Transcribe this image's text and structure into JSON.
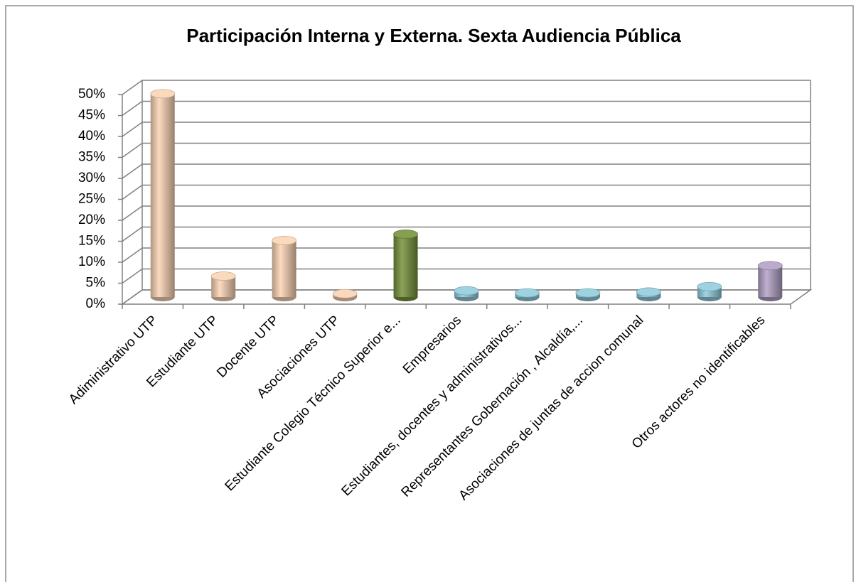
{
  "chart_data": {
    "type": "bar",
    "title": "Participación Interna y Externa. Sexta Audiencia Pública",
    "categories": [
      "Adiministrativo UTP",
      "Estudiante UTP",
      "Docente UTP",
      "Asociaciones UTP",
      "Estudiante Colegio Técnico Superior e...",
      "Empresarios",
      "Estudiantes, docentes y administrativos...",
      "Representantes Gobernación , Alcaldía,...",
      "Asociaciones de juntas de accion comunal",
      null,
      "Otros actores no identificables"
    ],
    "values": [
      48.5,
      5,
      13.5,
      0.8,
      15,
      1.5,
      1,
      1,
      1.2,
      2.5,
      7.5
    ],
    "colors": [
      "#fbd5b5",
      "#fbd5b5",
      "#fbd5b5",
      "#fbd5b5",
      "#77933c",
      "#93cddd",
      "#93cddd",
      "#93cddd",
      "#93cddd",
      "#93cddd",
      "#b3a2c7"
    ],
    "ylim": [
      0,
      50
    ],
    "yticks": [
      {
        "value": 0,
        "label": "0%"
      },
      {
        "value": 5,
        "label": "5%"
      },
      {
        "value": 10,
        "label": "10%"
      },
      {
        "value": 15,
        "label": "15%"
      },
      {
        "value": 20,
        "label": "20%"
      },
      {
        "value": 25,
        "label": "25%"
      },
      {
        "value": 30,
        "label": "30%"
      },
      {
        "value": 35,
        "label": "35%"
      },
      {
        "value": 40,
        "label": "40%"
      },
      {
        "value": 45,
        "label": "45%"
      },
      {
        "value": 50,
        "label": "50%"
      }
    ],
    "grid": true
  }
}
